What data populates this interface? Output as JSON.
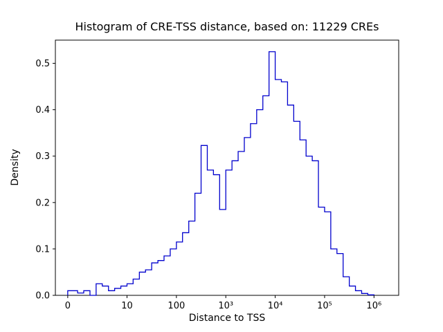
{
  "chart_data": {
    "type": "histogram-step",
    "title": "Histogram of CRE-TSS distance, based on: 11229 CREs",
    "xlabel": "Distance to TSS",
    "ylabel": "Density",
    "x_scale": "symlog",
    "line_color": "#0000cd",
    "axis_color": "#000000",
    "ylim": [
      0,
      0.55
    ],
    "x_ticks": [
      {
        "value": 0,
        "label": "0"
      },
      {
        "value": 10,
        "label": "10"
      },
      {
        "value": 100,
        "label": "100"
      },
      {
        "value": 1000,
        "label": "10³"
      },
      {
        "value": 10000,
        "label": "10⁴"
      },
      {
        "value": 100000,
        "label": "10⁵"
      },
      {
        "value": 1000000,
        "label": "10⁶"
      }
    ],
    "y_ticks": [
      {
        "value": 0.0,
        "label": "0.0"
      },
      {
        "value": 0.1,
        "label": "0.1"
      },
      {
        "value": 0.2,
        "label": "0.2"
      },
      {
        "value": 0.3,
        "label": "0.3"
      },
      {
        "value": 0.4,
        "label": "0.4"
      },
      {
        "value": 0.5,
        "label": "0.5"
      }
    ],
    "bin_edges": [
      0,
      1,
      1.33,
      1.78,
      2.37,
      3.16,
      4.22,
      5.62,
      7.5,
      10,
      13.3,
      17.8,
      23.7,
      31.6,
      42.2,
      56.2,
      75,
      100,
      133,
      178,
      237,
      316,
      422,
      562,
      750,
      1000,
      1334,
      1778,
      2371,
      3162,
      4217,
      5623,
      7499,
      10000,
      13335,
      17783,
      23714,
      31623,
      42170,
      56234,
      74989,
      100000,
      133352,
      177828,
      237137,
      316228,
      421697,
      562341,
      749894,
      1000000
    ],
    "densities": [
      0.01,
      0.005,
      0.01,
      0.0,
      0.025,
      0.02,
      0.01,
      0.015,
      0.02,
      0.025,
      0.035,
      0.05,
      0.055,
      0.07,
      0.075,
      0.085,
      0.1,
      0.115,
      0.135,
      0.16,
      0.22,
      0.323,
      0.27,
      0.26,
      0.185,
      0.27,
      0.29,
      0.31,
      0.34,
      0.37,
      0.4,
      0.43,
      0.525,
      0.465,
      0.46,
      0.41,
      0.375,
      0.335,
      0.3,
      0.29,
      0.19,
      0.18,
      0.1,
      0.09,
      0.04,
      0.02,
      0.01,
      0.004,
      0.001
    ]
  }
}
